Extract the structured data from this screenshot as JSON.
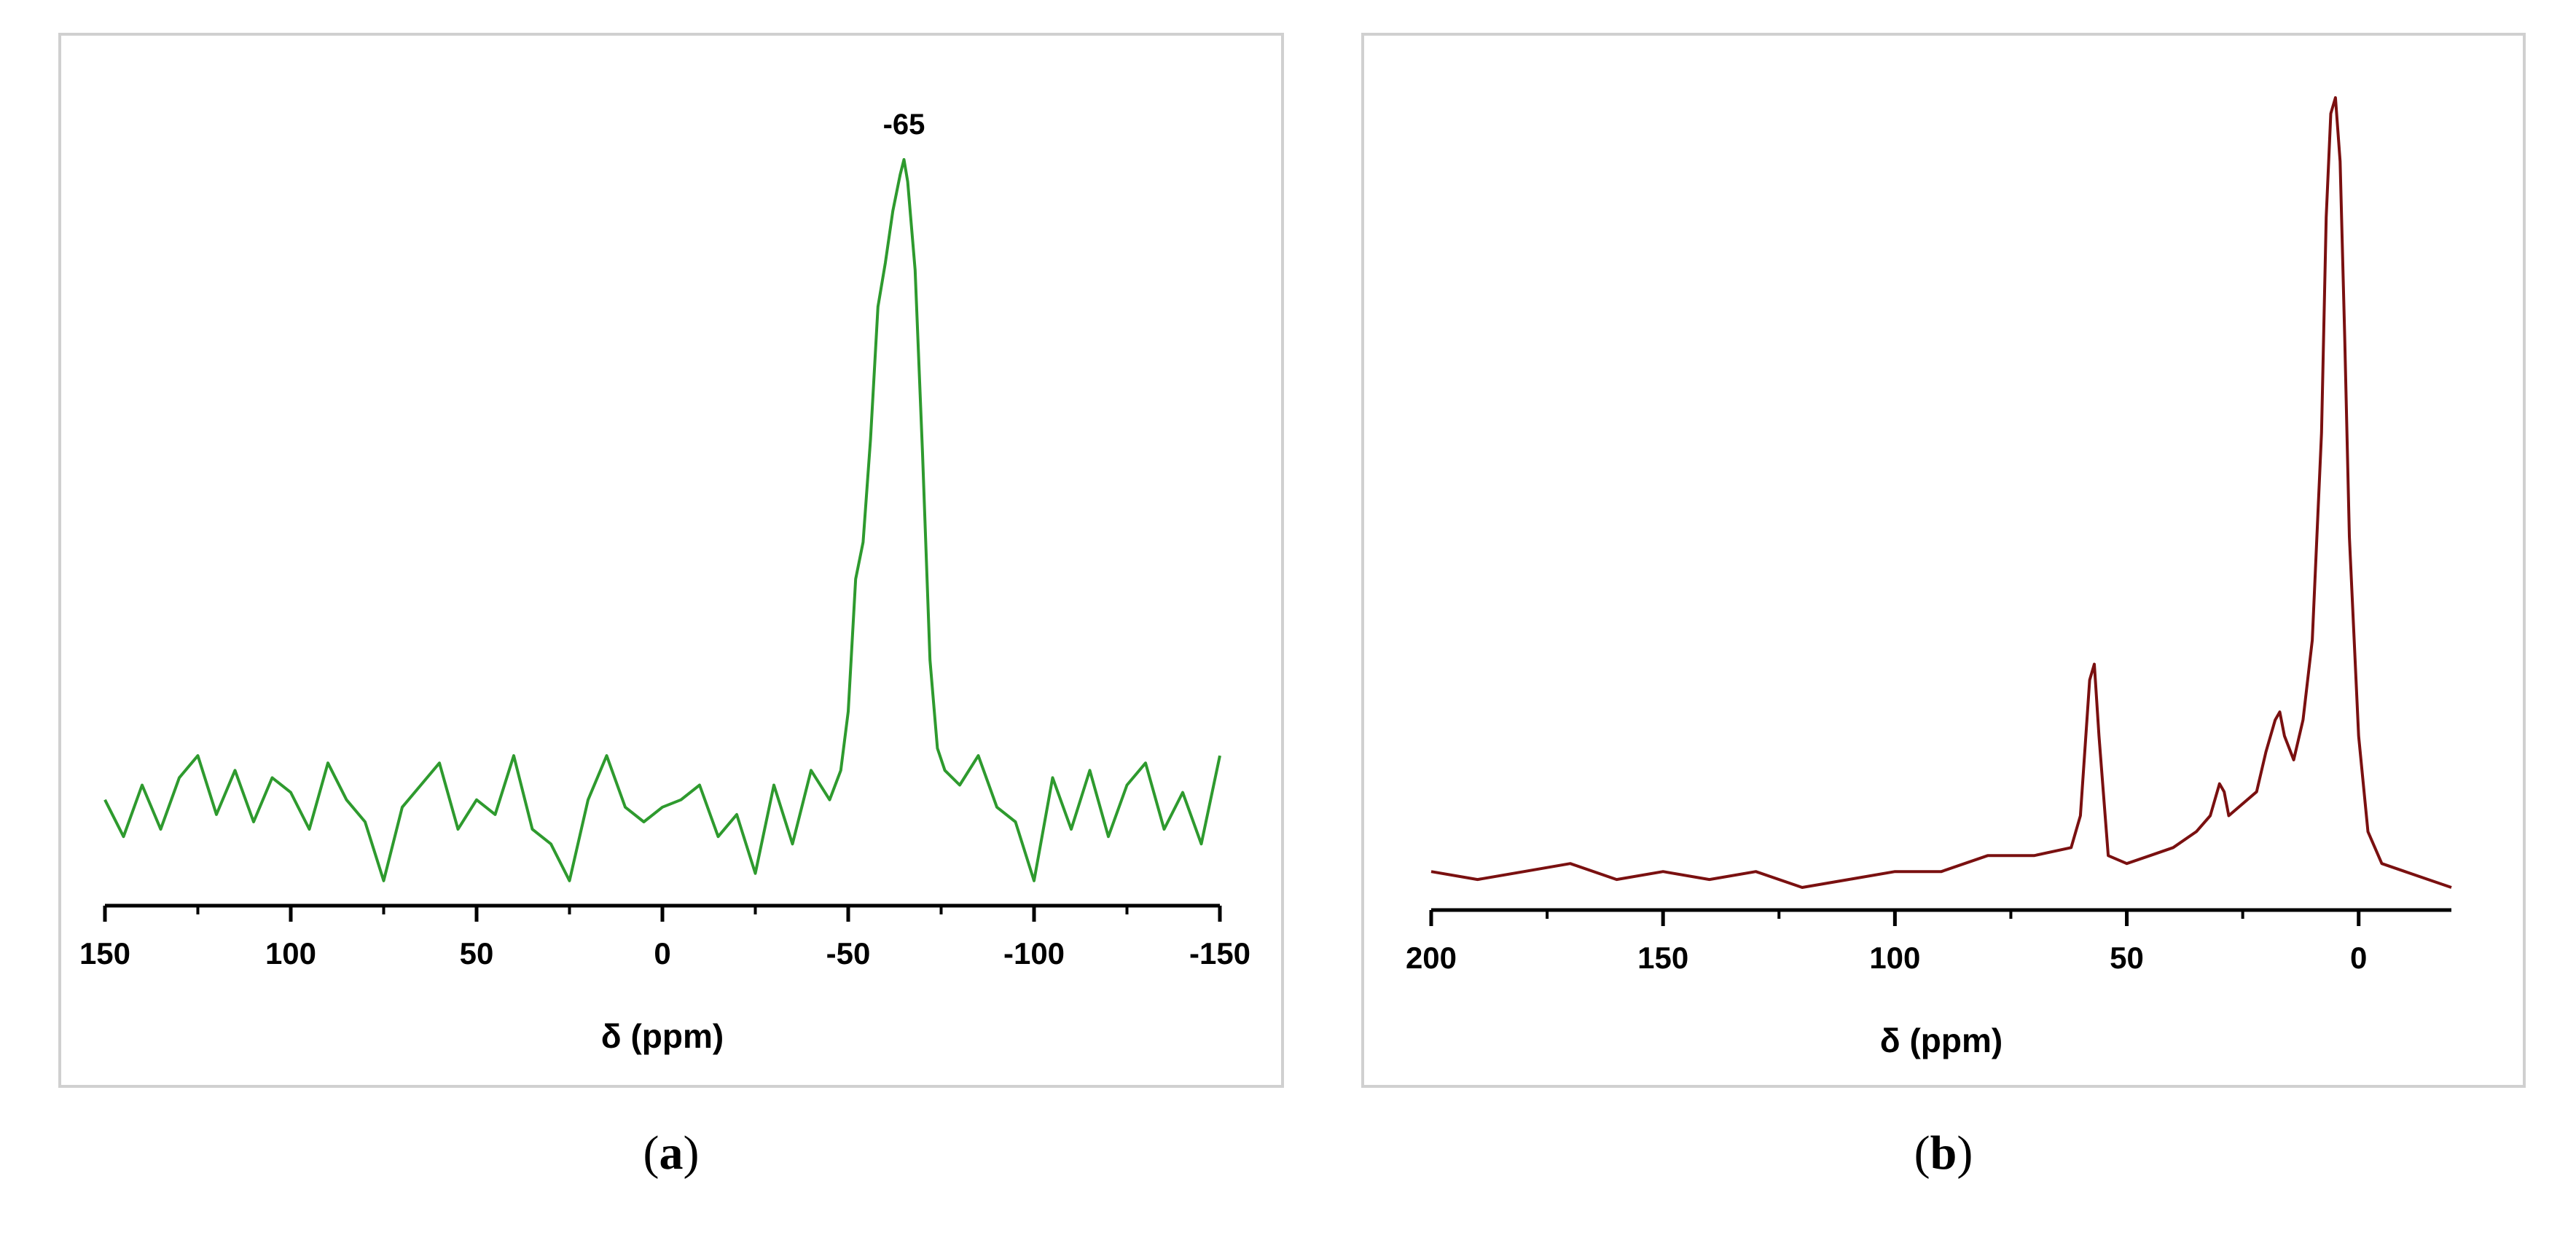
{
  "chart_data": [
    {
      "type": "line",
      "panel_label": "a",
      "xlabel": "δ (ppm)",
      "xlim": [
        150,
        -150
      ],
      "ylim": [
        0,
        1
      ],
      "xticks": [
        150,
        100,
        50,
        0,
        -50,
        -100,
        -150
      ],
      "xtick_labels": [
        "150",
        "100",
        "50",
        "0",
        "-50",
        "-100",
        "-150"
      ],
      "grid": false,
      "line_color": "#2e9a2e",
      "annotations": [
        {
          "x": -65,
          "y": 1.0,
          "text": "-65"
        }
      ],
      "series": [
        {
          "x": [
            150,
            145,
            140,
            135,
            130,
            125,
            120,
            115,
            110,
            105,
            100,
            95,
            90,
            85,
            80,
            75,
            70,
            65,
            60,
            55,
            50,
            45,
            40,
            35,
            30,
            25,
            20,
            15,
            10,
            5,
            0,
            -5,
            -10,
            -15,
            -20,
            -25,
            -30,
            -35,
            -40,
            -45,
            -48,
            -50,
            -52,
            -54,
            -56,
            -58,
            -60,
            -62,
            -64,
            -65,
            -66,
            -68,
            -70,
            -72,
            -74,
            -76,
            -80,
            -85,
            -90,
            -95,
            -100,
            -105,
            -110,
            -115,
            -120,
            -125,
            -130,
            -135,
            -140,
            -145,
            -150
          ],
          "y": [
            0.13,
            0.08,
            0.15,
            0.09,
            0.16,
            0.19,
            0.11,
            0.17,
            0.1,
            0.16,
            0.14,
            0.09,
            0.18,
            0.13,
            0.1,
            0.02,
            0.12,
            0.15,
            0.18,
            0.09,
            0.13,
            0.11,
            0.19,
            0.09,
            0.07,
            0.02,
            0.13,
            0.19,
            0.12,
            0.1,
            0.12,
            0.13,
            0.15,
            0.08,
            0.11,
            0.03,
            0.15,
            0.07,
            0.17,
            0.13,
            0.17,
            0.25,
            0.43,
            0.48,
            0.62,
            0.8,
            0.86,
            0.93,
            0.98,
            1.0,
            0.97,
            0.85,
            0.6,
            0.32,
            0.2,
            0.17,
            0.15,
            0.19,
            0.12,
            0.1,
            0.02,
            0.16,
            0.09,
            0.17,
            0.08,
            0.15,
            0.18,
            0.09,
            0.14,
            0.07,
            0.19
          ]
        }
      ]
    },
    {
      "type": "line",
      "panel_label": "b",
      "xlabel": "δ (ppm)",
      "xlim": [
        200,
        -20
      ],
      "ylim": [
        0,
        1
      ],
      "xticks": [
        200,
        150,
        100,
        50,
        0
      ],
      "xtick_labels": [
        "200",
        "150",
        "100",
        "50",
        "0"
      ],
      "grid": false,
      "line_color": "#7a1010",
      "series": [
        {
          "x": [
            200,
            190,
            180,
            170,
            160,
            150,
            140,
            130,
            120,
            110,
            100,
            90,
            80,
            70,
            62,
            60,
            58,
            57,
            56,
            54,
            50,
            45,
            40,
            35,
            32,
            30,
            29,
            28,
            26,
            22,
            20,
            18,
            17,
            16,
            14,
            12,
            10,
            8,
            7,
            6,
            5,
            4,
            3,
            2,
            0,
            -2,
            -5,
            -10,
            -15,
            -20
          ],
          "y": [
            0.03,
            0.02,
            0.03,
            0.04,
            0.02,
            0.03,
            0.02,
            0.03,
            0.01,
            0.02,
            0.03,
            0.03,
            0.05,
            0.05,
            0.06,
            0.1,
            0.27,
            0.29,
            0.2,
            0.05,
            0.04,
            0.05,
            0.06,
            0.08,
            0.1,
            0.14,
            0.13,
            0.1,
            0.11,
            0.13,
            0.18,
            0.22,
            0.23,
            0.2,
            0.17,
            0.22,
            0.32,
            0.58,
            0.85,
            0.98,
            1.0,
            0.92,
            0.7,
            0.45,
            0.2,
            0.08,
            0.04,
            0.03,
            0.02,
            0.01
          ]
        }
      ]
    }
  ],
  "captions": {
    "a": {
      "open": "(",
      "letter": "a",
      "close": ")"
    },
    "b": {
      "open": "(",
      "letter": "b",
      "close": ")"
    }
  }
}
